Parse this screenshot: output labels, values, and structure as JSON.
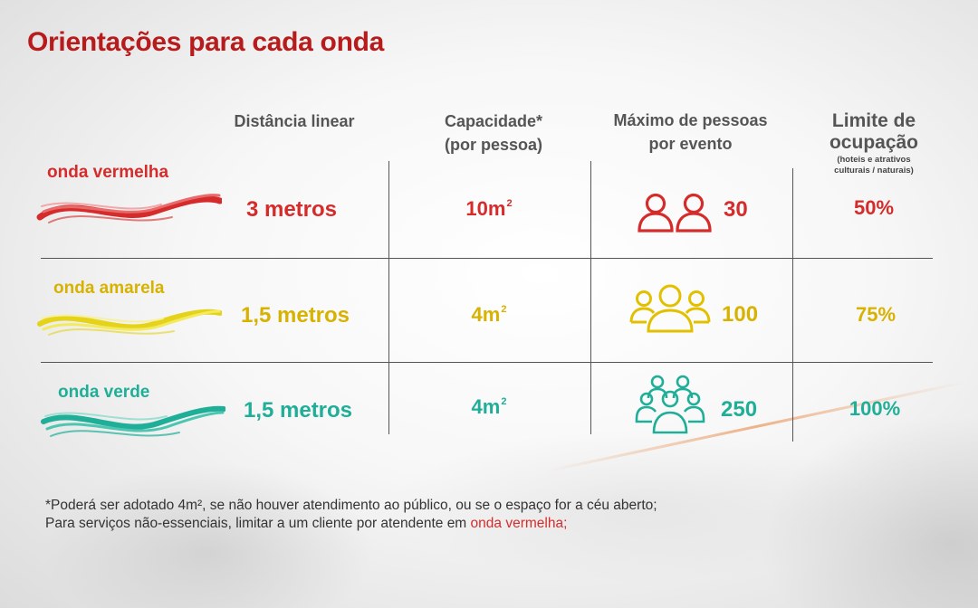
{
  "title": "Orientações para cada onda",
  "columns": {
    "distance": "Distância linear",
    "capacity_line1": "Capacidade*",
    "capacity_line2": "(por pessoa)",
    "max_line1": "Máximo de pessoas",
    "max_line2": "por evento",
    "limit_line1": "Limite de",
    "limit_line2": "ocupação",
    "limit_sub1": "(hoteis e atrativos",
    "limit_sub2": "culturais / naturais)"
  },
  "rows": [
    {
      "wave": "onda vermelha",
      "distance": "3 metros",
      "capacity": "10m",
      "capacity_exp": "2",
      "max_people": "30",
      "limit": "50%",
      "color": "#d62b2b",
      "icon": "two-people-icon"
    },
    {
      "wave": "onda amarela",
      "distance": "1,5 metros",
      "capacity": "4m",
      "capacity_exp": "2",
      "max_people": "100",
      "limit": "75%",
      "color": "#d8b200",
      "icon": "three-people-icon"
    },
    {
      "wave": "onda verde",
      "distance": "1,5 metros",
      "capacity": "4m",
      "capacity_exp": "2",
      "max_people": "250",
      "limit": "100%",
      "color": "#1fae97",
      "icon": "crowd-icon"
    }
  ],
  "footnote": {
    "line1": "*Poderá ser adotado 4m², se não houver atendimento ao público, ou se o espaço for a céu aberto;",
    "line2_prefix": "Para serviços não-essenciais, limitar a um cliente por atendente em ",
    "line2_highlight": "onda vermelha;"
  }
}
